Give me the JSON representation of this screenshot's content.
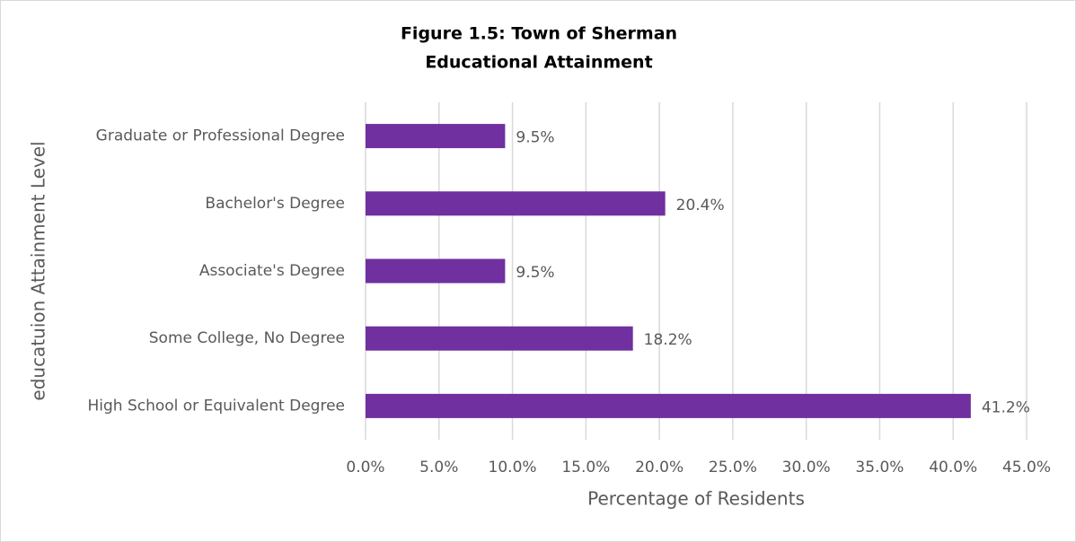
{
  "chart_data": {
    "type": "hbar",
    "title": [
      "Figure 1.5: Town of Sherman",
      "Educational Attainment"
    ],
    "x_label": "Percentage of Residents",
    "y_label": "educatuion Attainment Level",
    "categories": [
      "Graduate or Professional Degree",
      "Bachelor's Degree",
      "Associate's Degree",
      "Some College, No Degree",
      "High School or Equivalent Degree"
    ],
    "values": [
      9.5,
      20.4,
      9.5,
      18.2,
      41.2
    ],
    "value_labels": [
      "9.5%",
      "20.4%",
      "9.5%",
      "18.2%",
      "41.2%"
    ],
    "color": "#7030a0",
    "xlim": [
      0,
      45
    ],
    "xticks": [
      {
        "value": 0,
        "label": "0.0%"
      },
      {
        "value": 5,
        "label": "5.0%"
      },
      {
        "value": 10,
        "label": "10.0%"
      },
      {
        "value": 15,
        "label": "15.0%"
      },
      {
        "value": 20,
        "label": "20.0%"
      },
      {
        "value": 25,
        "label": "25.0%"
      },
      {
        "value": 30,
        "label": "30.0%"
      },
      {
        "value": 35,
        "label": "35.0%"
      },
      {
        "value": 40,
        "label": "40.0%"
      },
      {
        "value": 45,
        "label": "45.0%"
      }
    ],
    "grid": true
  }
}
